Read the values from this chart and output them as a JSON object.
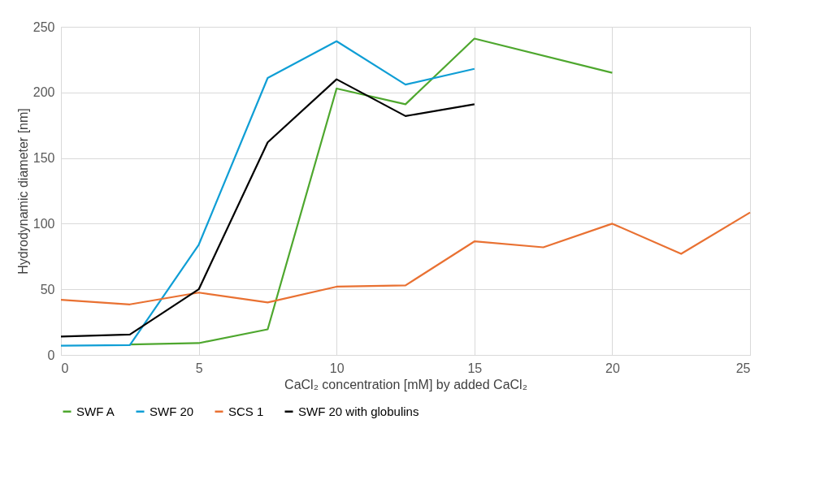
{
  "chart_data": {
    "type": "line",
    "xlabel": "CaCl₂ concentration [mM] by added CaCl₂",
    "ylabel": "Hydrodynamic diameter [nm]",
    "xlim": [
      0,
      25
    ],
    "xticks": [
      0,
      5,
      10,
      15,
      20,
      25
    ],
    "ylim": [
      0,
      250
    ],
    "yticks": [
      0,
      50,
      100,
      150,
      200,
      250
    ],
    "grid": true,
    "legend": "bottom",
    "marker": "none",
    "line_style": "solid",
    "series": [
      {
        "name": "SWF A",
        "color": "#4ea72e",
        "x": [
          2.5,
          5,
          7.5,
          10,
          12.5,
          15,
          20
        ],
        "values": [
          8,
          9,
          19.5,
          203,
          191,
          241,
          215
        ]
      },
      {
        "name": "SWF 20",
        "color": "#0f9ed5",
        "x": [
          0,
          2.5,
          5,
          7.5,
          10,
          12.5,
          15
        ],
        "values": [
          7,
          7.5,
          84,
          211,
          239,
          206,
          218
        ]
      },
      {
        "name": "SCS 1",
        "color": "#e97132",
        "x": [
          0,
          2.5,
          5,
          7.5,
          10,
          12.5,
          15,
          17.5,
          20,
          22.5,
          25
        ],
        "values": [
          42,
          38.5,
          47.5,
          40,
          52,
          53,
          86.5,
          82,
          100,
          77,
          108.5
        ]
      },
      {
        "name": "SWF 20 with globulins",
        "color": "#000000",
        "x": [
          0,
          2.5,
          5,
          7.5,
          10,
          12.5,
          15
        ],
        "values": [
          14,
          15.5,
          50,
          162,
          210,
          182,
          191
        ]
      }
    ]
  }
}
